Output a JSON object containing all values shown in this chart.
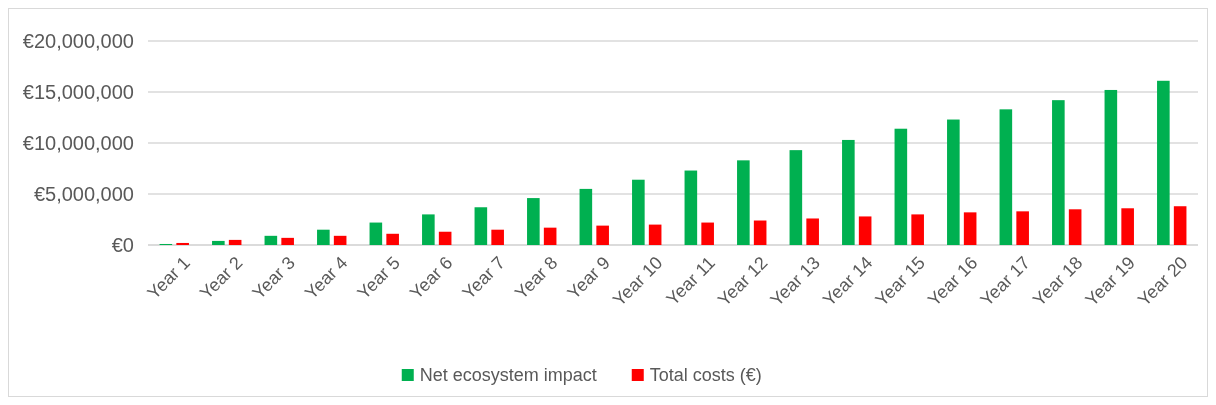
{
  "chart_data": {
    "type": "bar",
    "categories": [
      "Year 1",
      "Year 2",
      "Year 3",
      "Year 4",
      "Year 5",
      "Year 6",
      "Year 7",
      "Year 8",
      "Year 9",
      "Year 10",
      "Year 11",
      "Year 12",
      "Year 13",
      "Year 14",
      "Year 15",
      "Year 16",
      "Year 17",
      "Year 18",
      "Year 19",
      "Year 20"
    ],
    "series": [
      {
        "name": "Net ecosystem impact",
        "color": "#00b050",
        "values": [
          100000,
          400000,
          900000,
          1500000,
          2200000,
          3000000,
          3700000,
          4600000,
          5500000,
          6400000,
          7300000,
          8300000,
          9300000,
          10300000,
          11400000,
          12300000,
          13300000,
          14200000,
          15200000,
          16100000
        ]
      },
      {
        "name": "Total costs (€)",
        "color": "#ff0000",
        "values": [
          200000,
          500000,
          700000,
          900000,
          1100000,
          1300000,
          1500000,
          1700000,
          1900000,
          2000000,
          2200000,
          2400000,
          2600000,
          2800000,
          3000000,
          3200000,
          3300000,
          3500000,
          3600000,
          3800000
        ]
      }
    ],
    "ylim": [
      0,
      20000000
    ],
    "yticks": [
      {
        "value": 0,
        "label": "€0"
      },
      {
        "value": 5000000,
        "label": "€5,000,000"
      },
      {
        "value": 10000000,
        "label": "€10,000,000"
      },
      {
        "value": 15000000,
        "label": "€15,000,000"
      },
      {
        "value": 20000000,
        "label": "€20,000,000"
      }
    ],
    "grid": "y",
    "legend": "bottom"
  }
}
